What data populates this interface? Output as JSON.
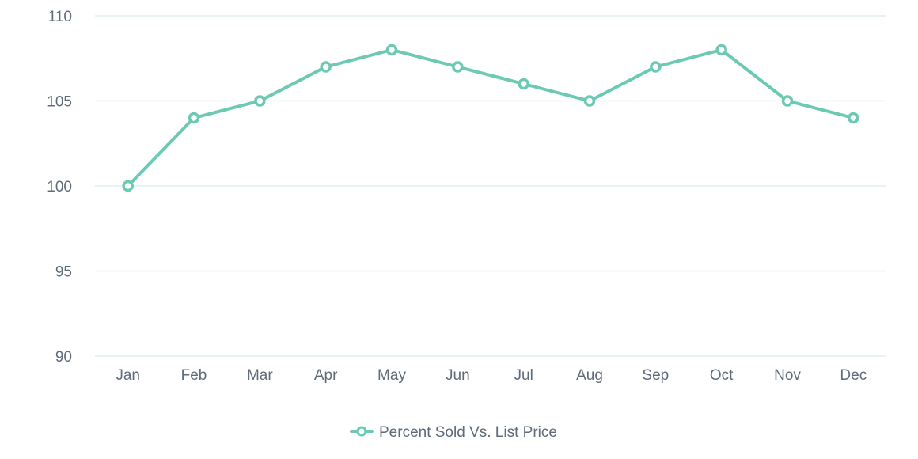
{
  "colors": {
    "series": "#6cc9b3",
    "grid": "#dfefee",
    "text": "#5f6b7a",
    "marker_fill": "#ffffff"
  },
  "chart_data": {
    "type": "line",
    "title": "",
    "xlabel": "",
    "ylabel": "",
    "categories": [
      "Jan",
      "Feb",
      "Mar",
      "Apr",
      "May",
      "Jun",
      "Jul",
      "Aug",
      "Sep",
      "Oct",
      "Nov",
      "Dec"
    ],
    "series": [
      {
        "name": "Percent Sold Vs. List Price",
        "values": [
          100,
          104,
          105,
          107,
          108,
          107,
          106,
          105,
          107,
          108,
          105,
          104
        ]
      }
    ],
    "ylim": [
      90,
      110
    ],
    "yticks": [
      90,
      95,
      100,
      105,
      110
    ],
    "grid": true,
    "legend_position": "bottom-center"
  }
}
